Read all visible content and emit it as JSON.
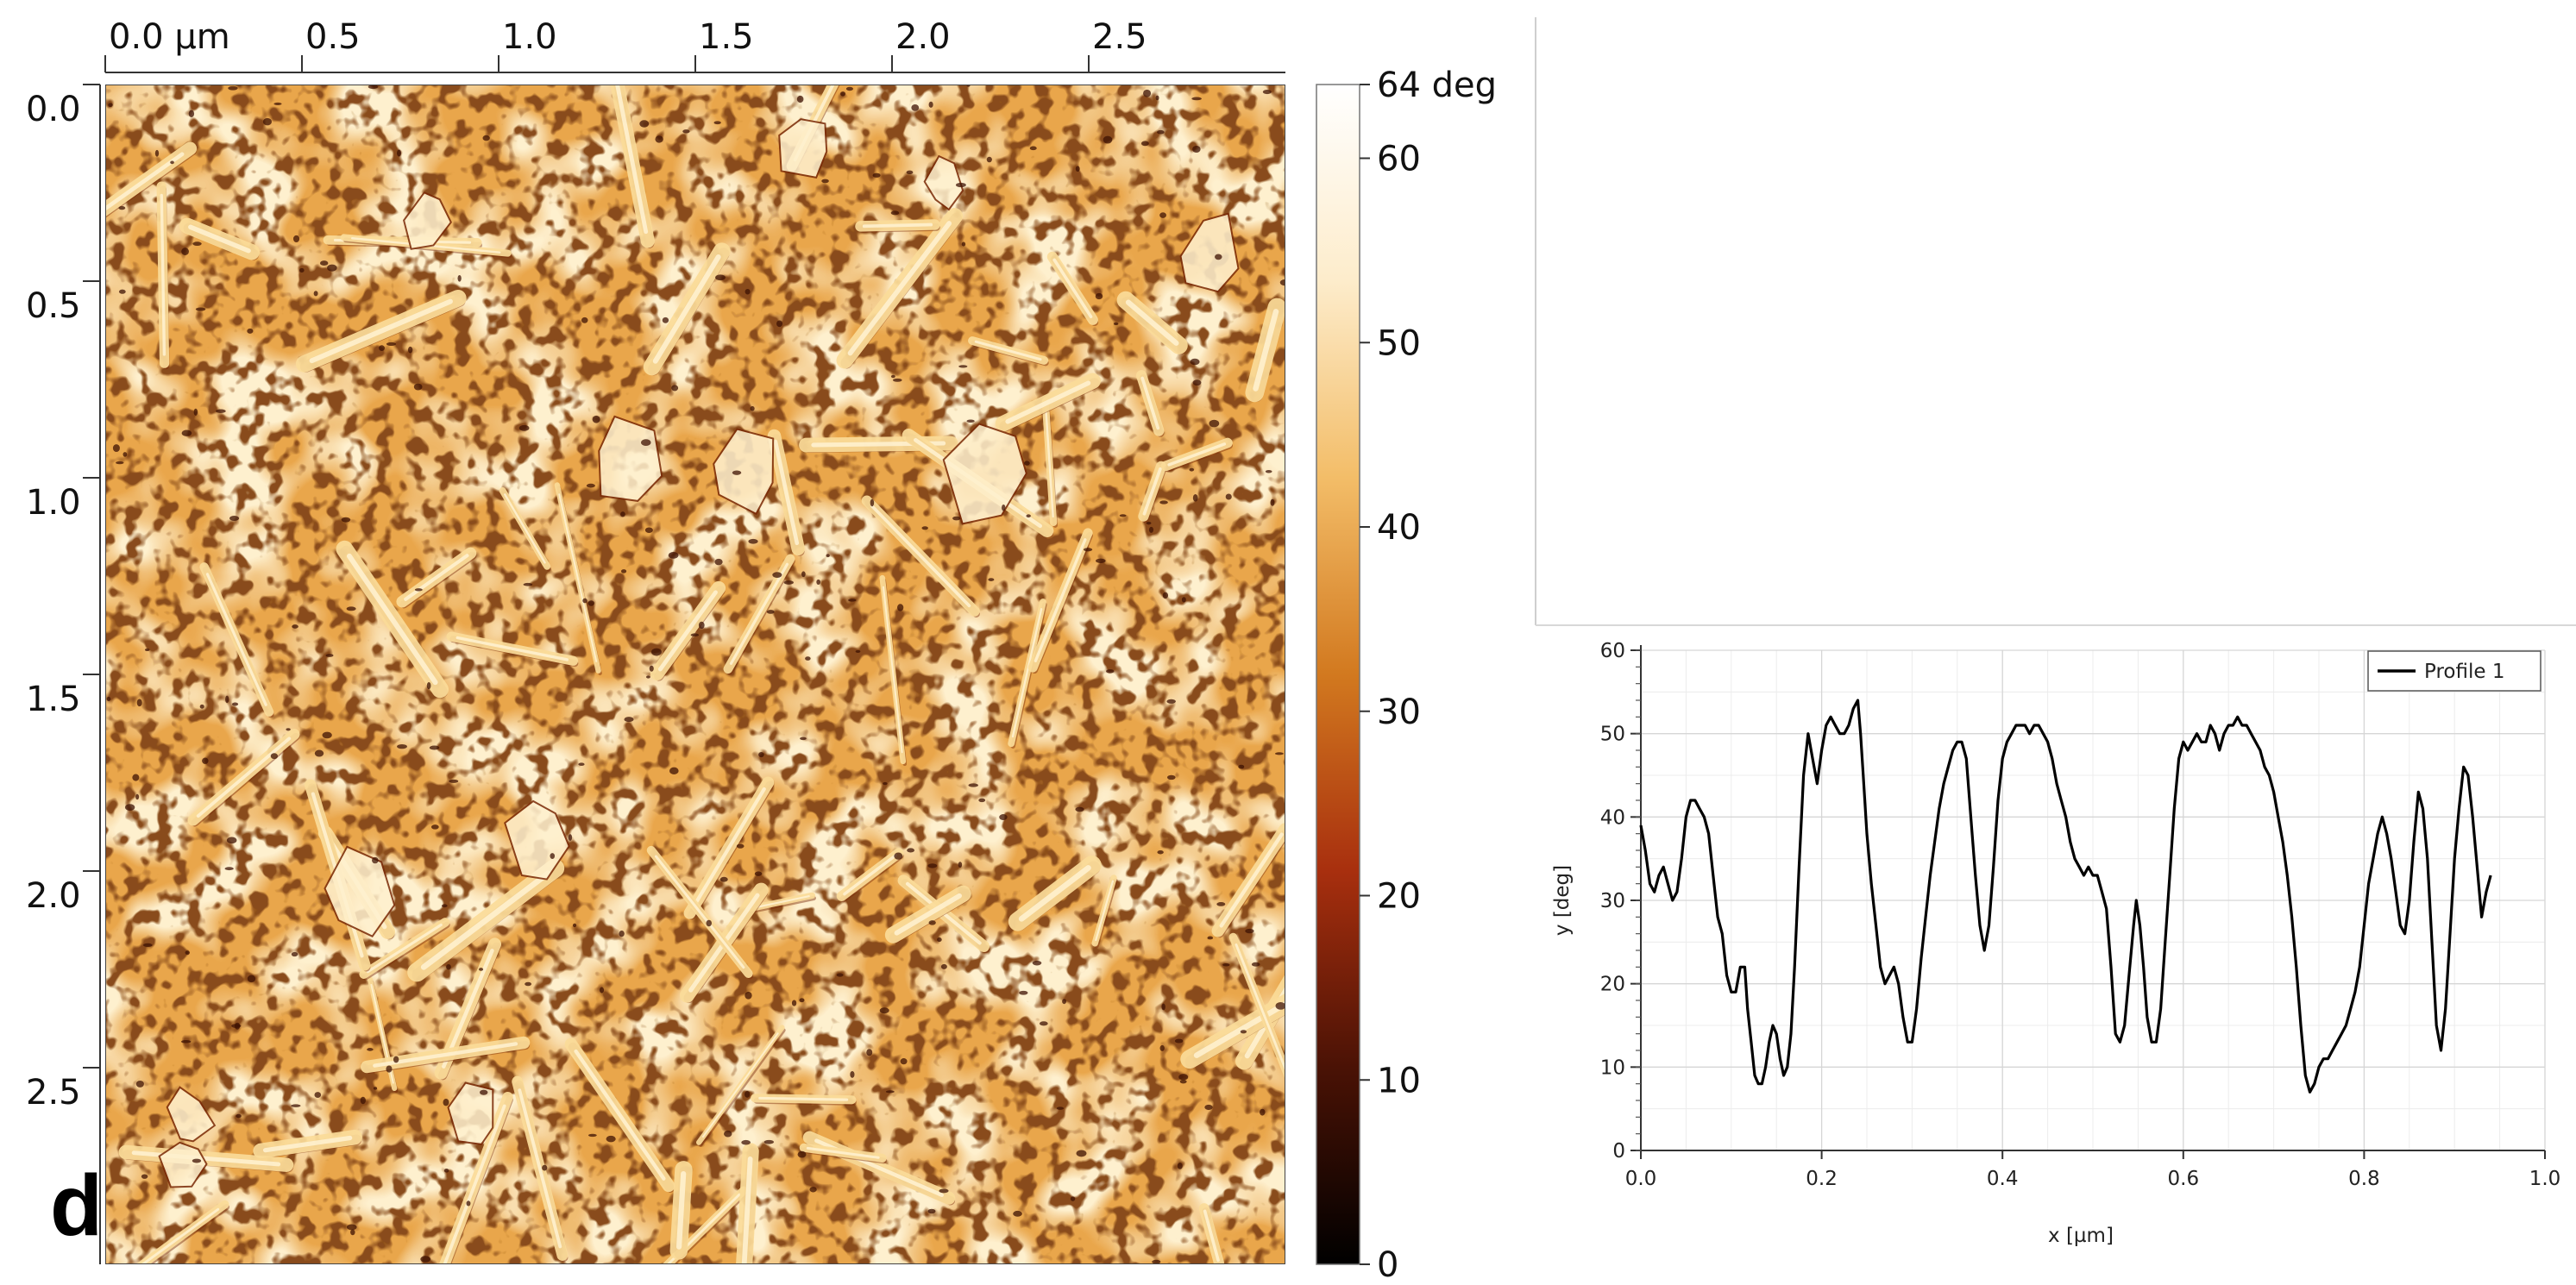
{
  "figure": {
    "panel_label": "d"
  },
  "chart_data": [
    {
      "type": "heatmap",
      "title": "",
      "x_ticks": [
        "0.0 µm",
        "0.5",
        "1.0",
        "1.5",
        "2.0",
        "2.5"
      ],
      "x_tick_values": [
        0.0,
        0.5,
        1.0,
        1.5,
        2.0,
        2.5
      ],
      "y_ticks": [
        "0.0",
        "0.5",
        "1.0",
        "1.5",
        "2.0",
        "2.5"
      ],
      "y_tick_values": [
        0.0,
        0.5,
        1.0,
        1.5,
        2.0,
        2.5
      ],
      "xlim": [
        0,
        3.0
      ],
      "ylim": [
        0,
        3.0
      ],
      "colorbar": {
        "ticks": [
          "64 deg",
          "60",
          "50",
          "40",
          "30",
          "20",
          "10",
          "0"
        ],
        "tick_values": [
          64,
          60,
          50,
          40,
          30,
          20,
          10,
          0
        ],
        "range": [
          0,
          64
        ],
        "colors": [
          "#000000",
          "#4a1205",
          "#a82f0e",
          "#d2791f",
          "#f3bd68",
          "#fdeccb",
          "#ffffff"
        ]
      },
      "image_palette": {
        "background": "#e9a64b",
        "light": "#fbdc99",
        "highlight": "#fff1cf",
        "dark": "#7a2a08",
        "darkest": "#3e1203"
      }
    },
    {
      "type": "line",
      "title": "",
      "xlabel": "x [µm]",
      "ylabel": "y [deg]",
      "xlim": [
        0,
        1.0
      ],
      "ylim": [
        0,
        60
      ],
      "x_ticks": [
        "0.0",
        "0.2",
        "0.4",
        "0.6",
        "0.8",
        "1.0"
      ],
      "x_tick_values": [
        0.0,
        0.2,
        0.4,
        0.6,
        0.8,
        1.0
      ],
      "y_ticks": [
        "0",
        "10",
        "20",
        "30",
        "40",
        "50",
        "60"
      ],
      "y_tick_values": [
        0,
        10,
        20,
        30,
        40,
        50,
        60
      ],
      "grid": true,
      "legend": "top-right",
      "series": [
        {
          "name": "Profile 1",
          "color": "#000000",
          "points": [
            [
              0.0,
              39
            ],
            [
              0.005,
              36
            ],
            [
              0.01,
              32
            ],
            [
              0.015,
              31
            ],
            [
              0.02,
              33
            ],
            [
              0.025,
              34
            ],
            [
              0.03,
              32
            ],
            [
              0.035,
              30
            ],
            [
              0.04,
              31
            ],
            [
              0.045,
              35
            ],
            [
              0.05,
              40
            ],
            [
              0.055,
              42
            ],
            [
              0.06,
              42
            ],
            [
              0.065,
              41
            ],
            [
              0.07,
              40
            ],
            [
              0.075,
              38
            ],
            [
              0.08,
              33
            ],
            [
              0.085,
              28
            ],
            [
              0.09,
              26
            ],
            [
              0.095,
              21
            ],
            [
              0.1,
              19
            ],
            [
              0.105,
              19
            ],
            [
              0.11,
              22
            ],
            [
              0.115,
              22
            ],
            [
              0.118,
              17
            ],
            [
              0.122,
              13
            ],
            [
              0.126,
              9
            ],
            [
              0.13,
              8
            ],
            [
              0.134,
              8
            ],
            [
              0.138,
              10
            ],
            [
              0.142,
              13
            ],
            [
              0.146,
              15
            ],
            [
              0.15,
              14
            ],
            [
              0.154,
              11
            ],
            [
              0.158,
              9
            ],
            [
              0.162,
              10
            ],
            [
              0.166,
              14
            ],
            [
              0.17,
              22
            ],
            [
              0.175,
              34
            ],
            [
              0.18,
              45
            ],
            [
              0.185,
              50
            ],
            [
              0.19,
              47
            ],
            [
              0.195,
              44
            ],
            [
              0.2,
              48
            ],
            [
              0.205,
              51
            ],
            [
              0.21,
              52
            ],
            [
              0.215,
              51
            ],
            [
              0.22,
              50
            ],
            [
              0.225,
              50
            ],
            [
              0.23,
              51
            ],
            [
              0.235,
              53
            ],
            [
              0.24,
              54
            ],
            [
              0.243,
              50
            ],
            [
              0.246,
              45
            ],
            [
              0.25,
              38
            ],
            [
              0.255,
              32
            ],
            [
              0.26,
              27
            ],
            [
              0.265,
              22
            ],
            [
              0.27,
              20
            ],
            [
              0.275,
              21
            ],
            [
              0.28,
              22
            ],
            [
              0.285,
              20
            ],
            [
              0.29,
              16
            ],
            [
              0.295,
              13
            ],
            [
              0.3,
              13
            ],
            [
              0.305,
              17
            ],
            [
              0.31,
              23
            ],
            [
              0.315,
              28
            ],
            [
              0.32,
              33
            ],
            [
              0.325,
              37
            ],
            [
              0.33,
              41
            ],
            [
              0.335,
              44
            ],
            [
              0.34,
              46
            ],
            [
              0.345,
              48
            ],
            [
              0.35,
              49
            ],
            [
              0.355,
              49
            ],
            [
              0.36,
              47
            ],
            [
              0.365,
              40
            ],
            [
              0.37,
              33
            ],
            [
              0.375,
              27
            ],
            [
              0.38,
              24
            ],
            [
              0.385,
              27
            ],
            [
              0.39,
              34
            ],
            [
              0.395,
              42
            ],
            [
              0.4,
              47
            ],
            [
              0.405,
              49
            ],
            [
              0.41,
              50
            ],
            [
              0.415,
              51
            ],
            [
              0.42,
              51
            ],
            [
              0.425,
              51
            ],
            [
              0.43,
              50
            ],
            [
              0.435,
              51
            ],
            [
              0.44,
              51
            ],
            [
              0.445,
              50
            ],
            [
              0.45,
              49
            ],
            [
              0.455,
              47
            ],
            [
              0.46,
              44
            ],
            [
              0.465,
              42
            ],
            [
              0.47,
              40
            ],
            [
              0.475,
              37
            ],
            [
              0.48,
              35
            ],
            [
              0.485,
              34
            ],
            [
              0.49,
              33
            ],
            [
              0.495,
              34
            ],
            [
              0.5,
              33
            ],
            [
              0.505,
              33
            ],
            [
              0.51,
              31
            ],
            [
              0.515,
              29
            ],
            [
              0.52,
              22
            ],
            [
              0.525,
              14
            ],
            [
              0.53,
              13
            ],
            [
              0.535,
              15
            ],
            [
              0.54,
              21
            ],
            [
              0.545,
              27
            ],
            [
              0.548,
              30
            ],
            [
              0.552,
              27
            ],
            [
              0.556,
              22
            ],
            [
              0.56,
              16
            ],
            [
              0.565,
              13
            ],
            [
              0.57,
              13
            ],
            [
              0.575,
              17
            ],
            [
              0.58,
              25
            ],
            [
              0.585,
              33
            ],
            [
              0.59,
              41
            ],
            [
              0.595,
              47
            ],
            [
              0.6,
              49
            ],
            [
              0.605,
              48
            ],
            [
              0.61,
              49
            ],
            [
              0.615,
              50
            ],
            [
              0.62,
              49
            ],
            [
              0.625,
              49
            ],
            [
              0.63,
              51
            ],
            [
              0.635,
              50
            ],
            [
              0.64,
              48
            ],
            [
              0.645,
              50
            ],
            [
              0.65,
              51
            ],
            [
              0.655,
              51
            ],
            [
              0.66,
              52
            ],
            [
              0.665,
              51
            ],
            [
              0.67,
              51
            ],
            [
              0.675,
              50
            ],
            [
              0.68,
              49
            ],
            [
              0.685,
              48
            ],
            [
              0.69,
              46
            ],
            [
              0.695,
              45
            ],
            [
              0.7,
              43
            ],
            [
              0.705,
              40
            ],
            [
              0.71,
              37
            ],
            [
              0.715,
              33
            ],
            [
              0.72,
              28
            ],
            [
              0.725,
              22
            ],
            [
              0.73,
              15
            ],
            [
              0.735,
              9
            ],
            [
              0.74,
              7
            ],
            [
              0.745,
              8
            ],
            [
              0.75,
              10
            ],
            [
              0.755,
              11
            ],
            [
              0.76,
              11
            ],
            [
              0.765,
              12
            ],
            [
              0.77,
              13
            ],
            [
              0.775,
              14
            ],
            [
              0.78,
              15
            ],
            [
              0.785,
              17
            ],
            [
              0.79,
              19
            ],
            [
              0.795,
              22
            ],
            [
              0.8,
              27
            ],
            [
              0.805,
              32
            ],
            [
              0.81,
              35
            ],
            [
              0.815,
              38
            ],
            [
              0.82,
              40
            ],
            [
              0.825,
              38
            ],
            [
              0.83,
              35
            ],
            [
              0.835,
              31
            ],
            [
              0.84,
              27
            ],
            [
              0.845,
              26
            ],
            [
              0.85,
              30
            ],
            [
              0.855,
              37
            ],
            [
              0.86,
              43
            ],
            [
              0.865,
              41
            ],
            [
              0.87,
              35
            ],
            [
              0.875,
              25
            ],
            [
              0.88,
              15
            ],
            [
              0.885,
              12
            ],
            [
              0.89,
              17
            ],
            [
              0.895,
              26
            ],
            [
              0.9,
              35
            ],
            [
              0.905,
              41
            ],
            [
              0.91,
              46
            ],
            [
              0.915,
              45
            ],
            [
              0.92,
              40
            ],
            [
              0.925,
              34
            ],
            [
              0.93,
              28
            ],
            [
              0.935,
              31
            ],
            [
              0.94,
              33
            ]
          ]
        }
      ]
    }
  ]
}
